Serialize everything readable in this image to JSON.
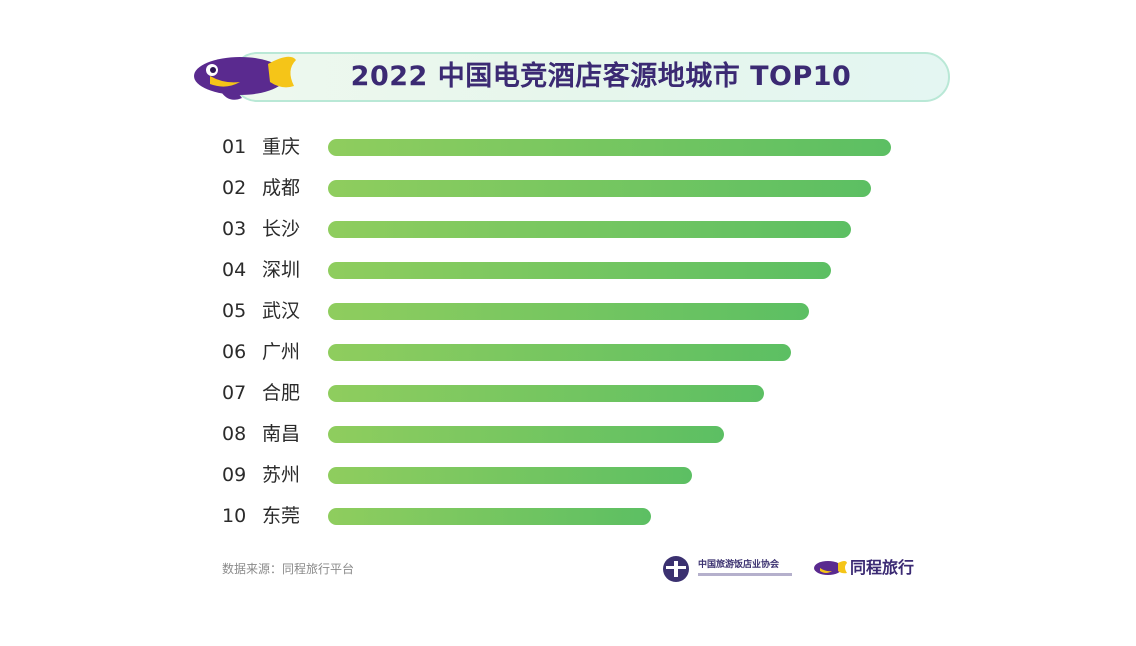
{
  "colors": {
    "bar_start": "#8fcd5e",
    "bar_end": "#5cbf63",
    "title": "#3b2a73",
    "pill_border": "#b9e8d6",
    "mascot_body": "#5a2a8f",
    "mascot_accent": "#f5c518"
  },
  "header": {
    "title": "2022 中国电竞酒店客源地城市 TOP10",
    "mascot_icon": "fish-mascot-icon"
  },
  "chart_data": {
    "type": "bar",
    "orientation": "horizontal",
    "title": "2022 中国电竞酒店客源地城市 TOP10",
    "xlabel": "",
    "ylabel": "",
    "grid": false,
    "legend": "none",
    "value_axis_labels": false,
    "ranks": [
      "01",
      "02",
      "03",
      "04",
      "05",
      "06",
      "07",
      "08",
      "09",
      "10"
    ],
    "categories": [
      "重庆",
      "成都",
      "长沙",
      "深圳",
      "武汉",
      "广州",
      "合肥",
      "南昌",
      "苏州",
      "东莞"
    ],
    "values": [
      100,
      96.4,
      92.9,
      89.3,
      85.5,
      82.2,
      77.4,
      70.3,
      64.6,
      57.4
    ],
    "xlim": [
      0,
      100
    ]
  },
  "footer": {
    "source": "数据来源：同程旅行平台",
    "association_name": "中国旅游饭店业协会",
    "association_icon": "association-logo-icon",
    "brand_name": "同程旅行",
    "brand_icon": "brand-fish-icon"
  }
}
